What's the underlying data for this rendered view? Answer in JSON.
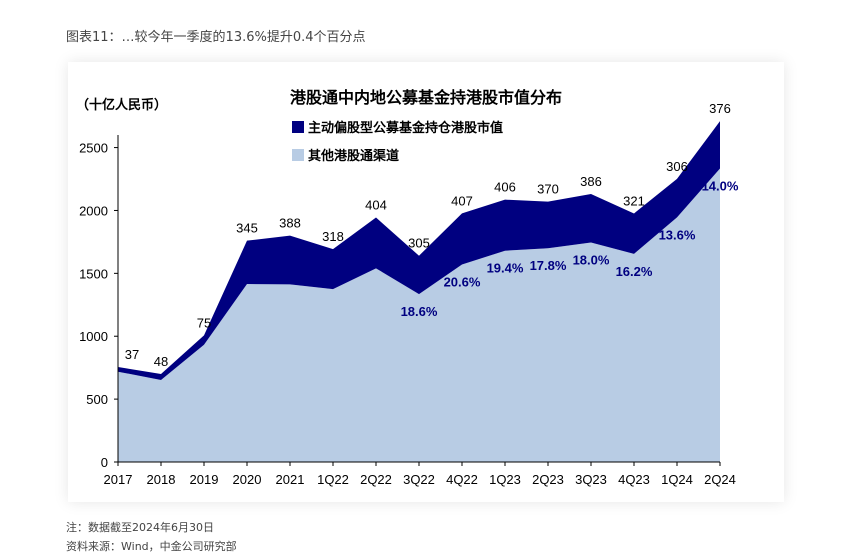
{
  "caption": "图表11：…较今年一季度的13.6%提升0.4个百分点",
  "note": "注：数据截至2024年6月30日",
  "source": "资料来源：Wind，中金公司研究部",
  "chart_data": {
    "type": "area",
    "title": "港股通中内地公募基金持港股市值分布",
    "ylabel": "（十亿人民币）",
    "xlabel": "",
    "ylim": [
      0,
      2600
    ],
    "yticks": [
      0,
      500,
      1000,
      1500,
      2000,
      2500
    ],
    "categories": [
      "2017",
      "2018",
      "2019",
      "2020",
      "2021",
      "1Q22",
      "2Q22",
      "3Q22",
      "4Q22",
      "1Q23",
      "2Q23",
      "3Q23",
      "4Q23",
      "1Q24",
      "2Q24"
    ],
    "series": [
      {
        "name": "其他港股通渠道",
        "color": "#b8cce4",
        "values": [
          718,
          652,
          932,
          1415,
          1412,
          1375,
          1540,
          1335,
          1570,
          1680,
          1700,
          1745,
          1655,
          1945,
          2334
        ]
      },
      {
        "name": "主动偏股型公募基金持仓港股市值",
        "color": "#000080",
        "values": [
          37,
          48,
          75,
          345,
          388,
          318,
          404,
          305,
          407,
          406,
          370,
          386,
          321,
          306,
          376
        ]
      }
    ],
    "active_value_labels": [
      "37",
      "48",
      "75",
      "345",
      "388",
      "318",
      "404",
      "305",
      "407",
      "406",
      "370",
      "386",
      "321",
      "306",
      "376"
    ],
    "share_labels": [
      {
        "category": "3Q22",
        "text": "18.6%"
      },
      {
        "category": "4Q22",
        "text": "20.6%"
      },
      {
        "category": "1Q23",
        "text": "19.4%"
      },
      {
        "category": "2Q23",
        "text": "17.8%"
      },
      {
        "category": "3Q23",
        "text": "18.0%"
      },
      {
        "category": "4Q23",
        "text": "16.2%"
      },
      {
        "category": "1Q24",
        "text": "13.6%"
      },
      {
        "category": "2Q24",
        "text": "14.0%"
      }
    ],
    "legend_position": "top-left",
    "grid": false
  }
}
